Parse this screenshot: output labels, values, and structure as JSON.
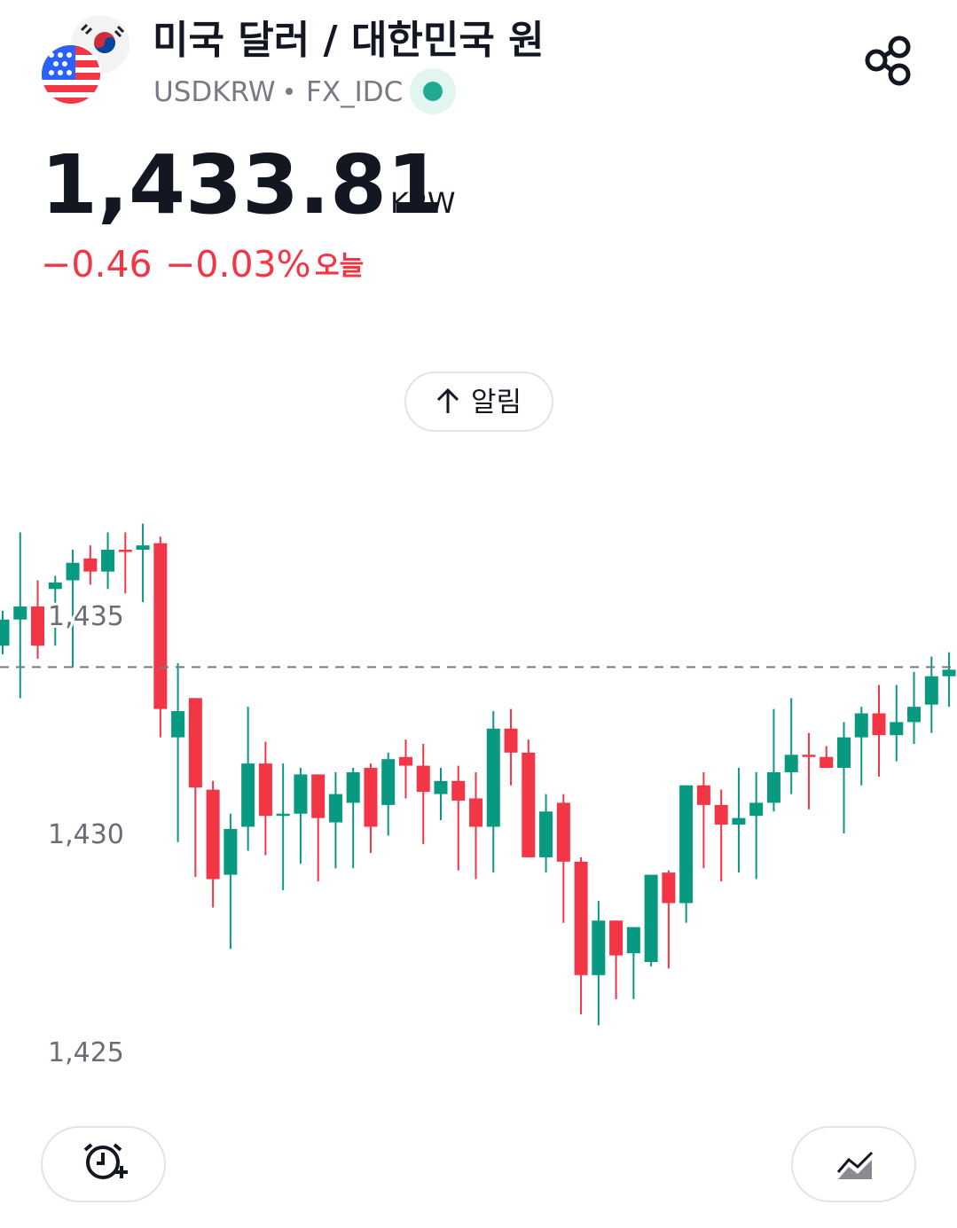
{
  "header": {
    "title": "미국 달러 / 대한민국 원",
    "symbol": "USDKRW",
    "exchange": "FX_IDC"
  },
  "quote": {
    "currency": "KRW",
    "change": "−0.46",
    "change_percent": "−0.03%",
    "period": "오늘"
  },
  "alert_button": {
    "label": "알림"
  },
  "chart_data": {
    "type": "candlestick",
    "last_price": {
      "value": 1433.81,
      "label": "1,433.81"
    },
    "categories": [
      null,
      null,
      null,
      null,
      null,
      null,
      null,
      null,
      null,
      null,
      null,
      null,
      null,
      null,
      null,
      null,
      null,
      null,
      null,
      null,
      null,
      null,
      null,
      null,
      null,
      null,
      null,
      null,
      null,
      null,
      null,
      null,
      null,
      null,
      null,
      null,
      null,
      null,
      null,
      null,
      null,
      null,
      null,
      null,
      null,
      null,
      null,
      null,
      null,
      null,
      null,
      null,
      null,
      null,
      null
    ],
    "open": [
      1434.3,
      1434.9,
      1435.2,
      1435.6,
      1435.8,
      1436.3,
      1436.0,
      1436.5,
      1436.5,
      1436.65,
      1432.2,
      1433.1,
      1431.0,
      1429.05,
      1430.15,
      1431.6,
      1430.4,
      1430.45,
      1431.35,
      1430.25,
      1430.7,
      1431.5,
      1430.65,
      1431.75,
      1431.55,
      1430.9,
      1431.2,
      1430.8,
      1430.15,
      1432.4,
      1431.85,
      1429.45,
      1430.7,
      1429.35,
      1426.75,
      1428.0,
      1427.25,
      1427.05,
      1429.1,
      1428.4,
      1431.1,
      1430.65,
      1430.2,
      1430.4,
      1430.7,
      1431.4,
      1431.8,
      1431.75,
      1431.5,
      1432.2,
      1432.75,
      1432.25,
      1432.55,
      1432.95,
      1433.6
    ],
    "high": [
      1435.1,
      1436.9,
      1435.8,
      1435.9,
      1436.5,
      1436.6,
      1436.9,
      1436.9,
      1437.1,
      1436.8,
      1433.9,
      1433.1,
      1431.2,
      1430.45,
      1432.9,
      1432.1,
      1431.6,
      1431.5,
      1431.35,
      1431.4,
      1431.5,
      1431.6,
      1431.85,
      1432.15,
      1432.05,
      1431.5,
      1431.55,
      1431.4,
      1432.8,
      1432.85,
      1432.15,
      1430.9,
      1430.9,
      1429.45,
      1428.45,
      1428.0,
      1427.85,
      1429.05,
      1429.15,
      1431.1,
      1431.4,
      1431.0,
      1431.5,
      1431.4,
      1432.85,
      1433.1,
      1432.3,
      1432.0,
      1432.55,
      1432.9,
      1433.4,
      1433.4,
      1433.7,
      1434.05,
      1434.15
    ],
    "low": [
      1434.1,
      1433.1,
      1434.0,
      1434.3,
      1433.8,
      1435.7,
      1435.6,
      1435.5,
      1435.3,
      1432.2,
      1429.8,
      1429.0,
      1428.3,
      1427.35,
      1429.6,
      1429.5,
      1428.7,
      1429.3,
      1428.9,
      1429.2,
      1429.2,
      1429.55,
      1429.95,
      1430.8,
      1429.75,
      1430.3,
      1429.15,
      1428.95,
      1429.1,
      1431.1,
      1429.45,
      1429.1,
      1427.95,
      1425.85,
      1425.6,
      1426.2,
      1426.2,
      1426.95,
      1426.9,
      1427.95,
      1429.2,
      1428.9,
      1429.1,
      1428.95,
      1430.5,
      1430.9,
      1430.55,
      1431.5,
      1430.0,
      1431.1,
      1431.3,
      1431.65,
      1432.05,
      1432.3,
      1432.9
    ],
    "close": [
      1434.9,
      1435.2,
      1434.3,
      1435.75,
      1436.2,
      1436.0,
      1436.5,
      1436.45,
      1436.6,
      1432.85,
      1432.8,
      1431.05,
      1428.95,
      1430.1,
      1431.6,
      1430.4,
      1430.45,
      1431.35,
      1430.35,
      1430.9,
      1431.4,
      1430.15,
      1431.7,
      1431.55,
      1430.95,
      1431.2,
      1430.75,
      1430.15,
      1432.4,
      1431.85,
      1429.45,
      1430.5,
      1429.35,
      1426.75,
      1428.0,
      1427.2,
      1427.85,
      1429.05,
      1428.4,
      1431.1,
      1430.65,
      1430.2,
      1430.35,
      1430.7,
      1431.4,
      1431.8,
      1431.75,
      1431.5,
      1432.2,
      1432.75,
      1432.25,
      1432.55,
      1432.9,
      1433.6,
      1433.75
    ],
    "up_color": "#089981",
    "down_color": "#f23645",
    "ylim": [
      1423.9,
      1437.72
    ],
    "yticks": [
      {
        "value": 1425,
        "label": "1,425"
      },
      {
        "value": 1430,
        "label": "1,430"
      },
      {
        "value": 1435,
        "label": "1,435"
      }
    ]
  }
}
